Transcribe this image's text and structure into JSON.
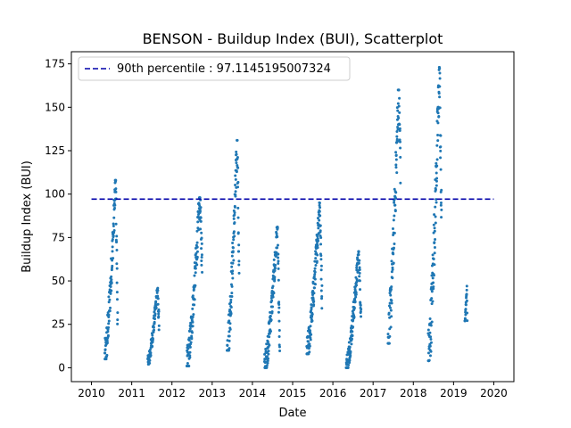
{
  "chart_data": {
    "type": "scatter",
    "title": "BENSON - Buildup Index (BUI), Scatterplot",
    "xlabel": "Date",
    "ylabel": "Buildup Index (BUI)",
    "xlim": [
      2009.5,
      2020.5
    ],
    "ylim": [
      -8,
      182
    ],
    "xticks": [
      "2010",
      "2011",
      "2012",
      "2013",
      "2014",
      "2015",
      "2016",
      "2017",
      "2018",
      "2019",
      "2020"
    ],
    "yticks": [
      "0",
      "25",
      "50",
      "75",
      "100",
      "125",
      "150",
      "175"
    ],
    "point_color": "#1f77b4",
    "reference_line": {
      "label": "90th percentile : 97.1145195007324",
      "value": 97.1145195007324,
      "x_start": 2010.0,
      "x_end": 2020.0,
      "color": "#0000aa",
      "style": "dashed"
    },
    "legend": {
      "placement": "top-left",
      "entries": [
        "90th percentile : 97.1145195007324"
      ]
    },
    "seasons": [
      {
        "year": 2010,
        "start": 2010.33,
        "end": 2010.65,
        "min": 5,
        "max": 108,
        "tail_low": 27
      },
      {
        "year": 2011,
        "start": 2011.4,
        "end": 2011.68,
        "min": 2,
        "max": 46,
        "tail_low": 25
      },
      {
        "year": 2012,
        "start": 2012.37,
        "end": 2012.75,
        "min": 1,
        "max": 98,
        "tail_low": 60
      },
      {
        "year": 2013,
        "start": 2013.37,
        "end": 2013.67,
        "min": 10,
        "max": 131,
        "tail_low": 50
      },
      {
        "year": 2014,
        "start": 2014.3,
        "end": 2014.68,
        "min": 0,
        "max": 81,
        "tail_low": 6
      },
      {
        "year": 2015,
        "start": 2015.35,
        "end": 2015.73,
        "min": 8,
        "max": 95,
        "tail_low": 40
      },
      {
        "year": 2016,
        "start": 2016.33,
        "end": 2016.7,
        "min": 0,
        "max": 67,
        "tail_low": 30
      },
      {
        "year": 2017,
        "start": 2017.37,
        "end": 2017.68,
        "min": 14,
        "max": 160,
        "tail_low": 120
      },
      {
        "year": 2018,
        "start": 2018.37,
        "end": 2018.7,
        "min": 4,
        "max": 173,
        "tail_low": 80
      },
      {
        "year": 2019,
        "start": 2019.28,
        "end": 2019.34,
        "min": 27,
        "max": 47,
        "tail_low": 27
      }
    ]
  }
}
